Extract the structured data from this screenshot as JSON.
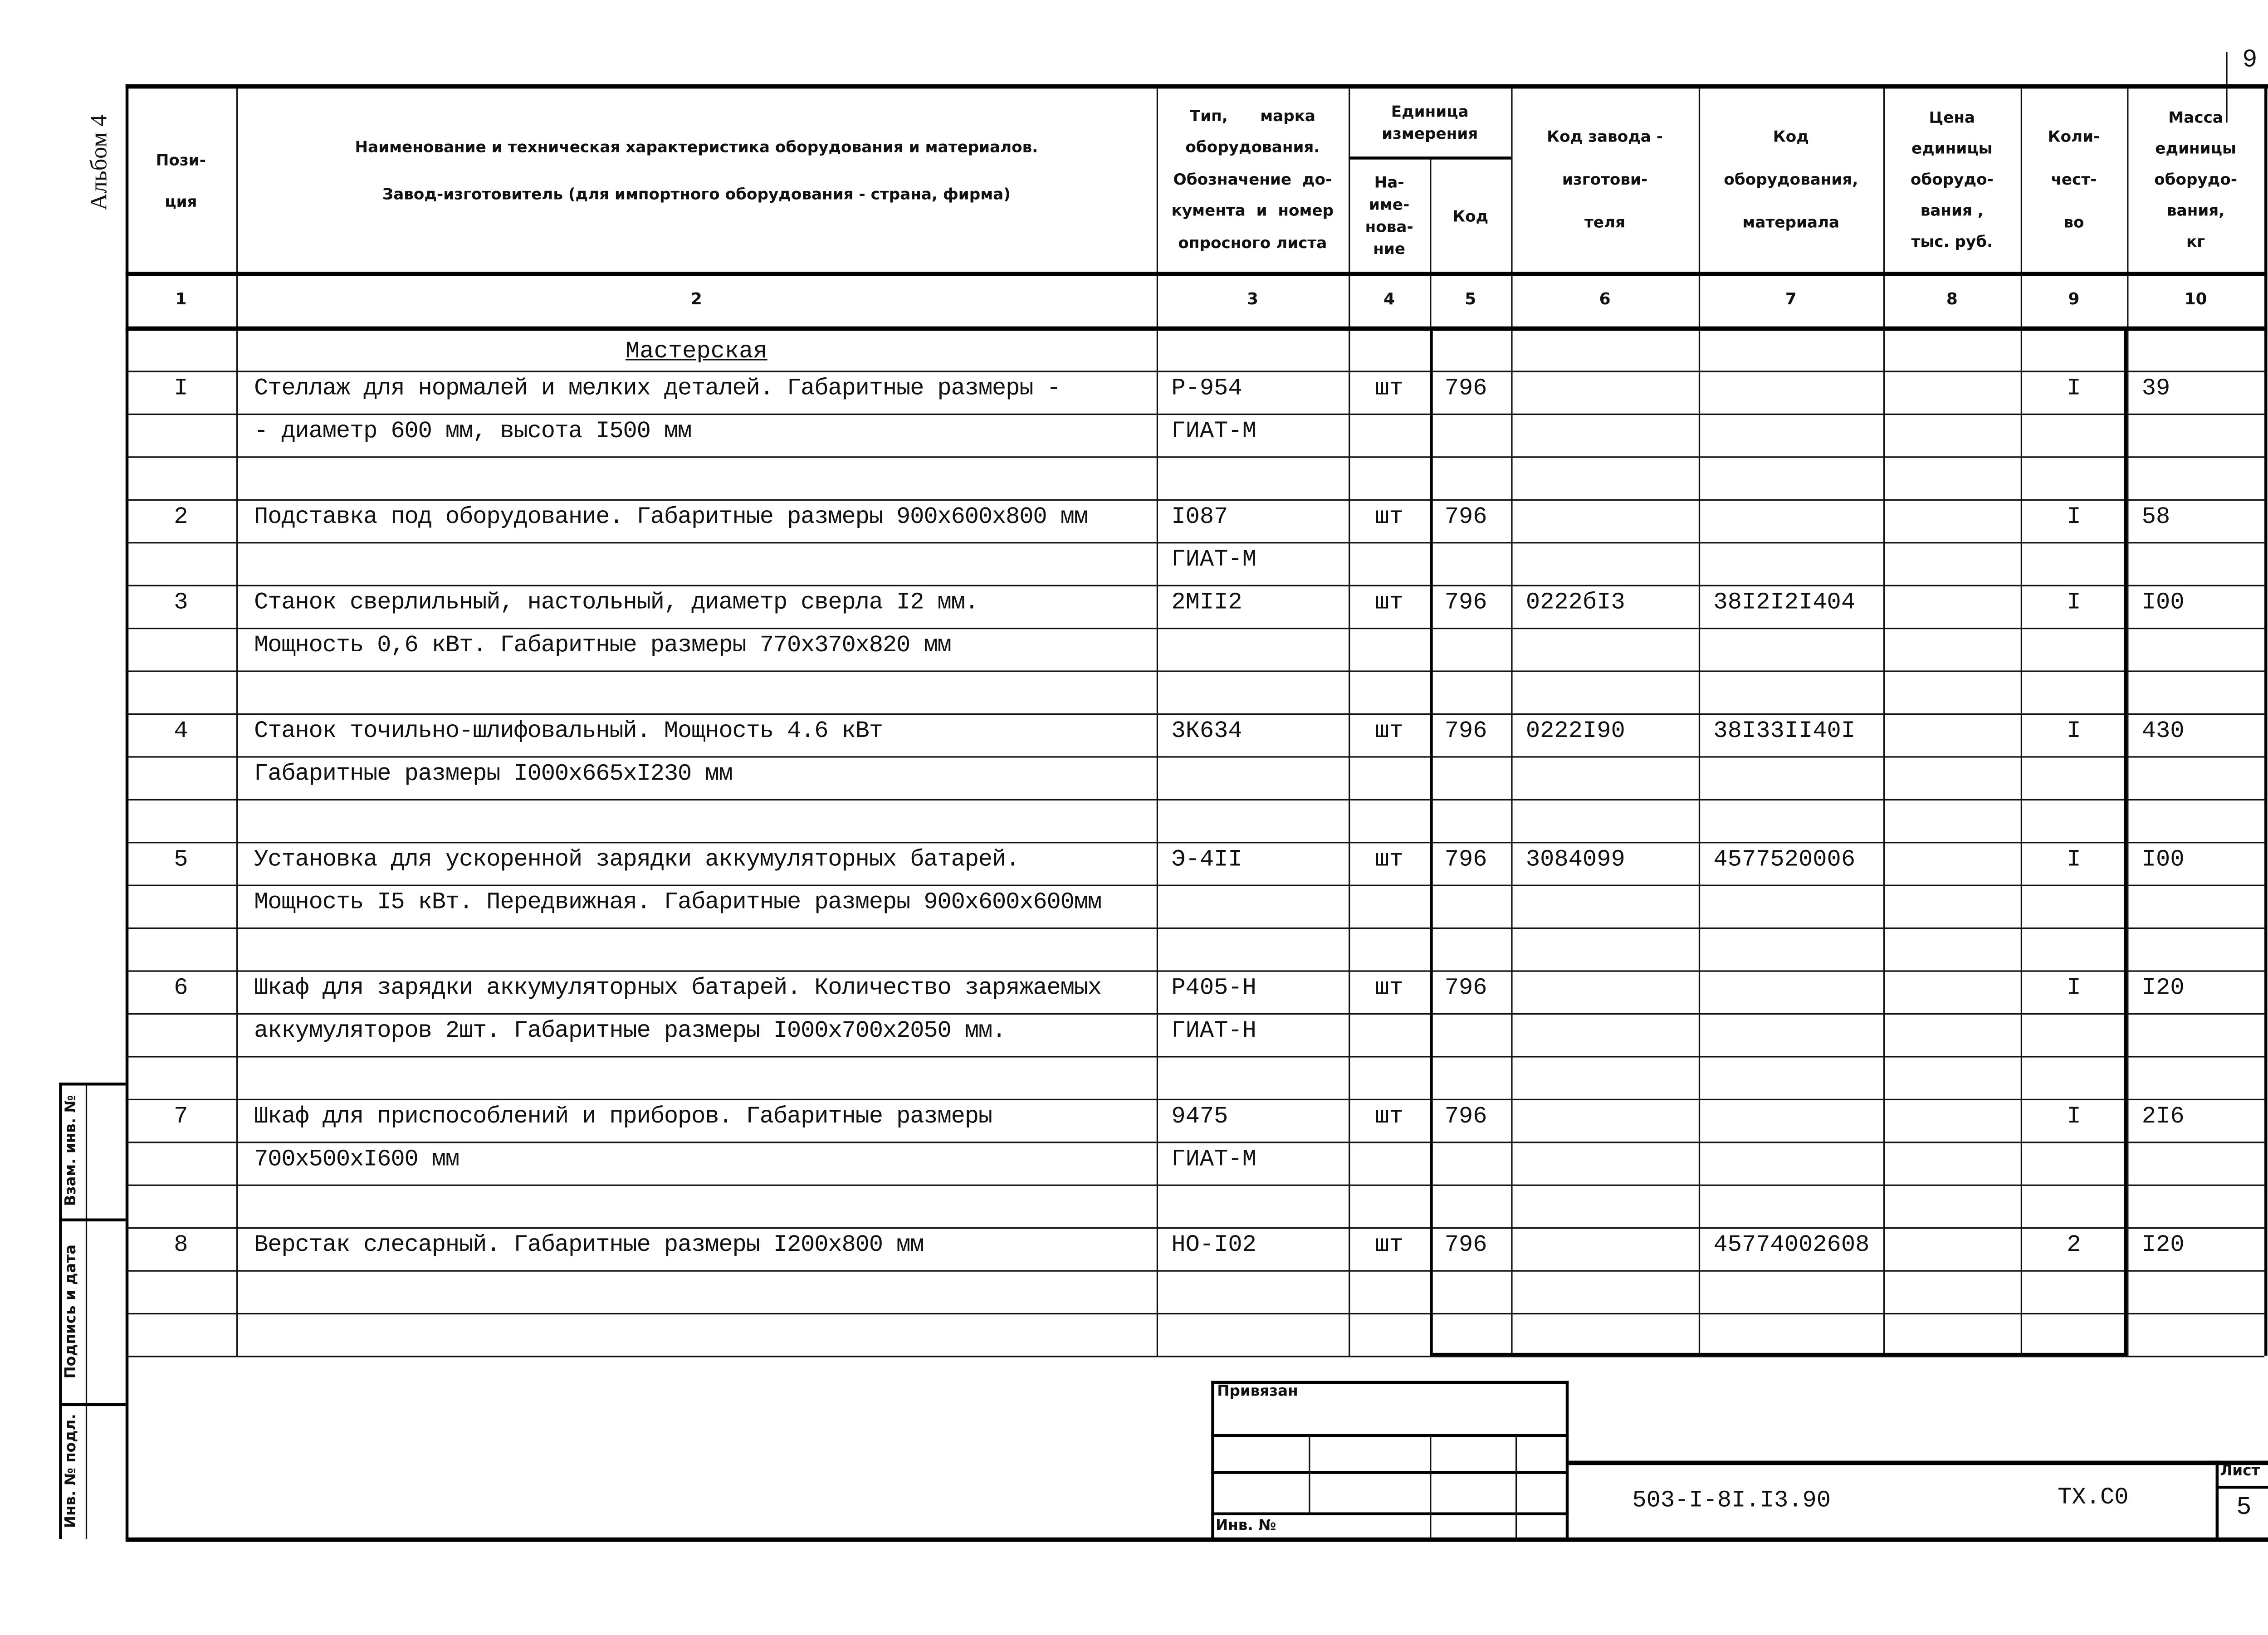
{
  "page_number": "9",
  "album_label": "Альбом 4",
  "headers": {
    "pos": "Пози-\nция",
    "name_line1": "Наименование и техническая характеристика  оборудования и материалов.",
    "name_line2": "Завод-изготовитель  (для импортного оборудования -  страна, фирма)",
    "type": "Тип,      марка\nоборудования.\nОбозначение  до-\nкумента  и  номер\nопросного листа",
    "unit_group": "Единица\nизмерения",
    "unit_name": "На-\nиме-\nнова-\nние",
    "unit_code": "Код",
    "factory_code": "Код  завода -\nизготови-\nтеля",
    "equip_code": "Код\nоборудования,\nматериала",
    "price": "Цена\nединицы\nоборудо-\nвания ,\nтыс. руб.",
    "qty": "Коли-\nчест-\nво",
    "mass": "Масса\nединицы\nоборудо-\nвания,\nкг"
  },
  "column_numbers": [
    "1",
    "2",
    "3",
    "4",
    "5",
    "6",
    "7",
    "8",
    "9",
    "10"
  ],
  "section_title": "Мастерская",
  "rows": [
    {
      "pos": "",
      "name": "",
      "type": "",
      "unit": "",
      "code": "",
      "factory": "",
      "equip": "",
      "price": "",
      "qty": "",
      "mass": ""
    },
    {
      "pos": "I",
      "name": "Стеллаж для нормалей и мелких деталей. Габаритные размеры -",
      "type": "Р-954",
      "unit": "шт",
      "code": "796",
      "factory": "",
      "equip": "",
      "price": "",
      "qty": "I",
      "mass": "39"
    },
    {
      "pos": "",
      "name": "- диаметр 600 мм, высота I500 мм",
      "type": "ГИАТ-М",
      "unit": "",
      "code": "",
      "factory": "",
      "equip": "",
      "price": "",
      "qty": "",
      "mass": ""
    },
    {
      "pos": "",
      "name": "",
      "type": "",
      "unit": "",
      "code": "",
      "factory": "",
      "equip": "",
      "price": "",
      "qty": "",
      "mass": ""
    },
    {
      "pos": "2",
      "name": "Подставка под оборудование. Габаритные размеры 900x600x800 мм",
      "type": "I087",
      "unit": "шт",
      "code": "796",
      "factory": "",
      "equip": "",
      "price": "",
      "qty": "I",
      "mass": "58"
    },
    {
      "pos": "",
      "name": "",
      "type": "ГИАТ-М",
      "unit": "",
      "code": "",
      "factory": "",
      "equip": "",
      "price": "",
      "qty": "",
      "mass": ""
    },
    {
      "pos": "3",
      "name": "Станок сверлильный, настольный, диаметр сверла I2 мм.",
      "type": "2МII2",
      "unit": "шт",
      "code": "796",
      "factory": "0222бI3",
      "equip": "38I2I2I404",
      "price": "",
      "qty": "I",
      "mass": "I00"
    },
    {
      "pos": "",
      "name": "Мощность 0,6 кВт. Габаритные размеры 770x370x820 мм",
      "type": "",
      "unit": "",
      "code": "",
      "factory": "",
      "equip": "",
      "price": "",
      "qty": "",
      "mass": ""
    },
    {
      "pos": "",
      "name": "",
      "type": "",
      "unit": "",
      "code": "",
      "factory": "",
      "equip": "",
      "price": "",
      "qty": "",
      "mass": ""
    },
    {
      "pos": "4",
      "name": "Станок точильно-шлифовальный. Мощность 4.6 кВт",
      "type": "3К634",
      "unit": "шт",
      "code": "796",
      "factory": "0222I90",
      "equip": "38I33II40I",
      "price": "",
      "qty": "I",
      "mass": "430"
    },
    {
      "pos": "",
      "name": "Габаритные размеры I000x665xI230 мм",
      "type": "",
      "unit": "",
      "code": "",
      "factory": "",
      "equip": "",
      "price": "",
      "qty": "",
      "mass": ""
    },
    {
      "pos": "",
      "name": "",
      "type": "",
      "unit": "",
      "code": "",
      "factory": "",
      "equip": "",
      "price": "",
      "qty": "",
      "mass": ""
    },
    {
      "pos": "5",
      "name": "Установка для ускоренной зарядки аккумуляторных батарей.",
      "type": "Э-4II",
      "unit": "шт",
      "code": "796",
      "factory": "3084099",
      "equip": "4577520006",
      "price": "",
      "qty": "I",
      "mass": "I00"
    },
    {
      "pos": "",
      "name": "Мощность I5 кВт. Передвижная. Габаритные размеры 900x600x600мм",
      "type": "",
      "unit": "",
      "code": "",
      "factory": "",
      "equip": "",
      "price": "",
      "qty": "",
      "mass": ""
    },
    {
      "pos": "",
      "name": "",
      "type": "",
      "unit": "",
      "code": "",
      "factory": "",
      "equip": "",
      "price": "",
      "qty": "",
      "mass": ""
    },
    {
      "pos": "6",
      "name": "Шкаф для зарядки аккумуляторных батарей. Количество заряжаемых",
      "type": "Р405-Н",
      "unit": "шт",
      "code": "796",
      "factory": "",
      "equip": "",
      "price": "",
      "qty": "I",
      "mass": "I20"
    },
    {
      "pos": "",
      "name": "аккумуляторов 2шт. Габаритные размеры I000x700x2050 мм.",
      "type": "ГИАТ-Н",
      "unit": "",
      "code": "",
      "factory": "",
      "equip": "",
      "price": "",
      "qty": "",
      "mass": ""
    },
    {
      "pos": "",
      "name": "",
      "type": "",
      "unit": "",
      "code": "",
      "factory": "",
      "equip": "",
      "price": "",
      "qty": "",
      "mass": ""
    },
    {
      "pos": "7",
      "name": "Шкаф для приспособлений и приборов. Габаритные размеры",
      "type": "9475",
      "unit": "шт",
      "code": "796",
      "factory": "",
      "equip": "",
      "price": "",
      "qty": "I",
      "mass": "2I6"
    },
    {
      "pos": "",
      "name": "700x500xI600 мм",
      "type": "ГИАТ-М",
      "unit": "",
      "code": "",
      "factory": "",
      "equip": "",
      "price": "",
      "qty": "",
      "mass": ""
    },
    {
      "pos": "",
      "name": "",
      "type": "",
      "unit": "",
      "code": "",
      "factory": "",
      "equip": "",
      "price": "",
      "qty": "",
      "mass": ""
    },
    {
      "pos": "8",
      "name": "Верстак слесарный. Габаритные размеры I200x800 мм",
      "type": "НО-I02",
      "unit": "шт",
      "code": "796",
      "factory": "",
      "equip": "45774002608",
      "price": "",
      "qty": "2",
      "mass": "I20"
    },
    {
      "pos": "",
      "name": "",
      "type": "",
      "unit": "",
      "code": "",
      "factory": "",
      "equip": "",
      "price": "",
      "qty": "",
      "mass": ""
    },
    {
      "pos": "",
      "name": "",
      "type": "",
      "unit": "",
      "code": "",
      "factory": "",
      "equip": "",
      "price": "",
      "qty": "",
      "mass": ""
    }
  ],
  "side_stamp": {
    "replace_inv": "Взам. инв. №",
    "signature_date": "Подпись и дата",
    "inv_original": "Инв. № подл."
  },
  "stamp": {
    "linked": "Привязан",
    "inv_no": "Инв. №",
    "doc_code": "503-I-8I.I3.90",
    "section": "ТХ.С0",
    "sheet_label": "Лист",
    "sheet_number": "5"
  }
}
